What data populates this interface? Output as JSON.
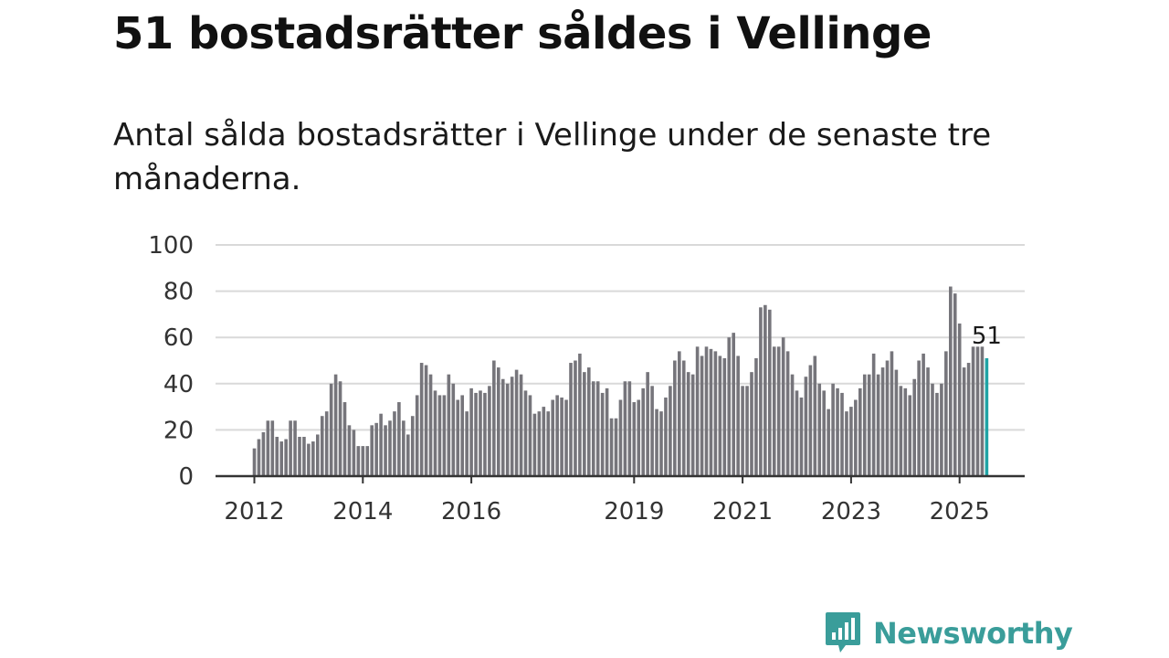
{
  "title": "51 bostadsrätter såldes i Vellinge",
  "subtitle": "Antal sålda bostadsrätter i Vellinge under de senaste tre månaderna.",
  "brand": {
    "name": "Newsworthy",
    "icon": "newsworthy-logo-icon",
    "color": "#3a9d9a"
  },
  "colors": {
    "bar": "#76757b",
    "highlight": "#1fa3a5",
    "grid": "#d9d9d9",
    "axis": "#333333"
  },
  "chart_data": {
    "type": "bar",
    "title": "51 bostadsrätter såldes i Vellinge",
    "xlabel": "",
    "ylabel": "",
    "ylim": [
      0,
      100
    ],
    "yticks": [
      0,
      20,
      40,
      60,
      80,
      100
    ],
    "grid": true,
    "legend": "none",
    "start": "2012-01",
    "interval": "monthly",
    "xticks": [
      {
        "label": "2012",
        "date": "2012-01"
      },
      {
        "label": "2014",
        "date": "2014-01"
      },
      {
        "label": "2016",
        "date": "2016-01"
      },
      {
        "label": "2019",
        "date": "2019-01"
      },
      {
        "label": "2021",
        "date": "2021-01"
      },
      {
        "label": "2023",
        "date": "2023-01"
      },
      {
        "label": "2025",
        "date": "2025-01"
      }
    ],
    "highlight": {
      "date": "2025-07",
      "value": 51,
      "label": "51"
    },
    "values": [
      12,
      16,
      19,
      24,
      24,
      17,
      15,
      16,
      24,
      24,
      17,
      17,
      14,
      15,
      18,
      26,
      28,
      40,
      44,
      41,
      32,
      22,
      20,
      13,
      13,
      13,
      22,
      23,
      27,
      22,
      24,
      28,
      32,
      24,
      18,
      26,
      35,
      49,
      48,
      44,
      37,
      35,
      35,
      44,
      40,
      33,
      35,
      28,
      38,
      36,
      37,
      36,
      39,
      50,
      47,
      42,
      40,
      43,
      46,
      44,
      37,
      35,
      27,
      28,
      30,
      28,
      33,
      35,
      34,
      33,
      49,
      50,
      53,
      45,
      47,
      41,
      41,
      36,
      38,
      25,
      25,
      33,
      41,
      41,
      32,
      33,
      38,
      45,
      39,
      29,
      28,
      34,
      39,
      50,
      54,
      50,
      45,
      44,
      56,
      52,
      56,
      55,
      54,
      52,
      51,
      60,
      62,
      52,
      39,
      39,
      45,
      51,
      73,
      74,
      72,
      56,
      56,
      60,
      54,
      44,
      37,
      34,
      43,
      48,
      52,
      40,
      37,
      29,
      40,
      38,
      36,
      28,
      30,
      33,
      38,
      44,
      44,
      53,
      44,
      47,
      50,
      54,
      46,
      39,
      38,
      35,
      42,
      50,
      53,
      47,
      40,
      36,
      40,
      54,
      82,
      79,
      66,
      47,
      49,
      56,
      56,
      56,
      51
    ]
  }
}
